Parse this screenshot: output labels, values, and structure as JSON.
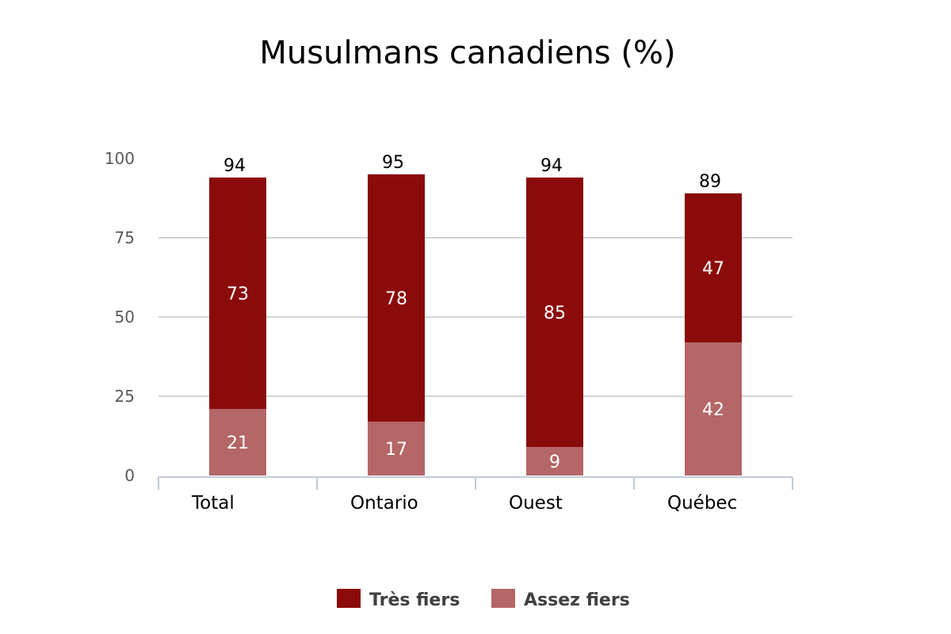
{
  "chart_data": {
    "type": "bar",
    "stacked": true,
    "title": "Musulmans canadiens (%)",
    "xlabel": "",
    "ylabel": "",
    "categories": [
      "Total",
      "Ontario",
      "Ouest",
      "Québec"
    ],
    "series": [
      {
        "name": "Très fiers",
        "values": [
          73,
          78,
          85,
          47
        ],
        "color": "#8b0b0b"
      },
      {
        "name": "Assez fiers",
        "values": [
          21,
          17,
          9,
          42
        ],
        "color": "#b56666"
      }
    ],
    "totals": [
      94,
      95,
      94,
      89
    ],
    "ylim": [
      0,
      100
    ],
    "yticks": [
      0,
      25,
      50,
      75,
      100
    ],
    "grid": true,
    "legend_position": "bottom"
  }
}
